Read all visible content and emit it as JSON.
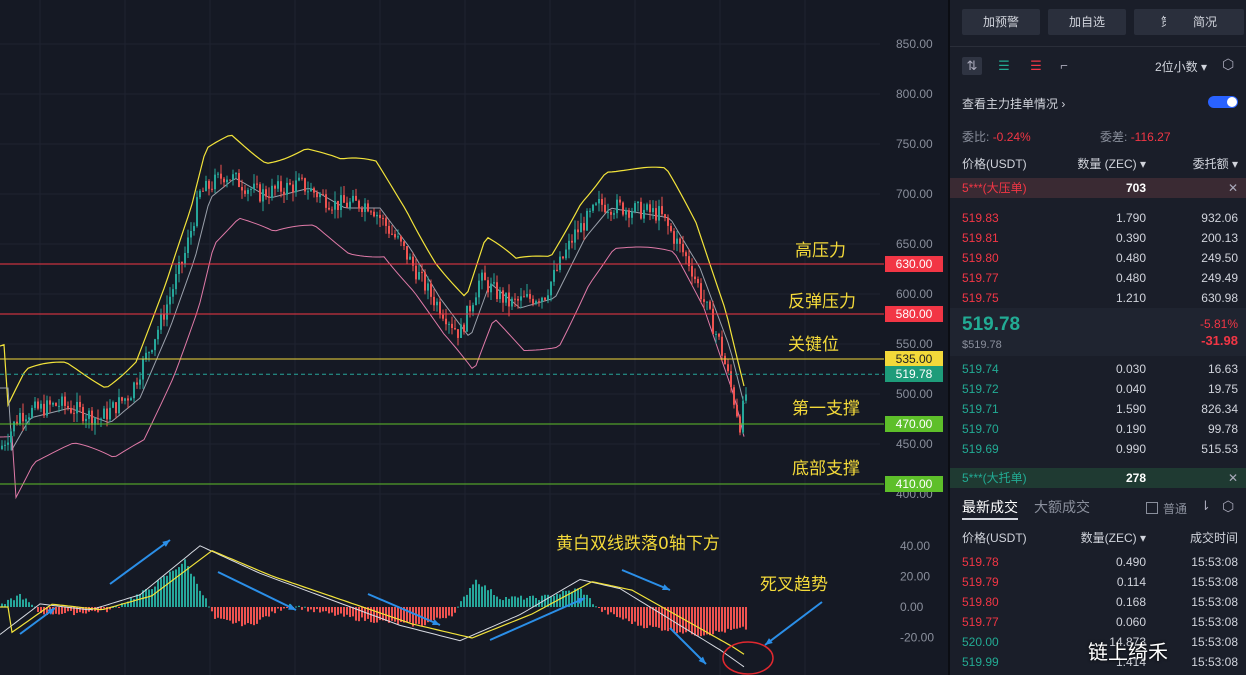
{
  "chart_data": {
    "type": "candlestick",
    "price_axis": {
      "ticks": [
        "850.00",
        "800.00",
        "750.00",
        "700.00",
        "650.00",
        "600.00",
        "550.00",
        "500.00",
        "450.00",
        "400.00"
      ],
      "range": [
        400,
        870
      ]
    },
    "macd_axis": {
      "ticks": [
        "40.00",
        "20.00",
        "0.00",
        "-20.00"
      ]
    },
    "current_price": 519.78,
    "levels": [
      {
        "price": 630.0,
        "label": "630.00",
        "color": "#f23645",
        "annotation": "高压力"
      },
      {
        "price": 580.0,
        "label": "580.00",
        "color": "#f23645",
        "annotation": "反弹压力"
      },
      {
        "price": 535.0,
        "label": "535.00",
        "color": "#f3d93a",
        "annotation": "关键位"
      },
      {
        "price": 470.0,
        "label": "470.00",
        "color": "#5ebf2a",
        "annotation": "第一支撑"
      },
      {
        "price": 410.0,
        "label": "410.00",
        "color": "#5ebf2a",
        "annotation": "底部支撑"
      }
    ],
    "current_tag": "519.78",
    "macd_annotations": [
      "黄白双线跌落0轴下方",
      "死叉趋势"
    ]
  },
  "panel": {
    "buttons": [
      "加预警",
      "加自选",
      "策略",
      "简况"
    ],
    "decimals": "2位小数",
    "depth_link": "查看主力挂单情况",
    "ratio_label": "委比:",
    "ratio_value": "-0.24%",
    "diff_label": "委差:",
    "diff_value": "-116.27",
    "headers": {
      "price": "价格(USDT)",
      "qty": "数量 (ZEC)",
      "amount": "委托额"
    },
    "big_sell": {
      "label": "5***(大压单)",
      "qty": "703"
    },
    "big_buy": {
      "label": "5***(大托单)",
      "qty": "278"
    },
    "asks": [
      {
        "price": "519.83",
        "qty": "1.790",
        "amount": "932.06"
      },
      {
        "price": "519.81",
        "qty": "0.390",
        "amount": "200.13"
      },
      {
        "price": "519.80",
        "qty": "0.480",
        "amount": "249.50"
      },
      {
        "price": "519.77",
        "qty": "0.480",
        "amount": "249.49"
      },
      {
        "price": "519.75",
        "qty": "1.210",
        "amount": "630.98"
      }
    ],
    "last_price": "519.78",
    "last_price_usd": "$519.78",
    "change_pct": "-5.81%",
    "change_abs": "-31.98",
    "bids": [
      {
        "price": "519.74",
        "qty": "0.030",
        "amount": "16.63"
      },
      {
        "price": "519.72",
        "qty": "0.040",
        "amount": "19.75"
      },
      {
        "price": "519.71",
        "qty": "1.590",
        "amount": "826.34"
      },
      {
        "price": "519.70",
        "qty": "0.190",
        "amount": "99.78"
      },
      {
        "price": "519.69",
        "qty": "0.990",
        "amount": "515.53"
      }
    ],
    "trades_tab": "最新成交",
    "big_trades_tab": "大额成交",
    "normal_label": "普通",
    "trade_headers": {
      "price": "价格(USDT)",
      "qty": "数量(ZEC)",
      "time": "成交时间"
    },
    "trades": [
      {
        "price": "519.78",
        "qty": "0.490",
        "time": "15:53:08",
        "side": "sell"
      },
      {
        "price": "519.79",
        "qty": "0.114",
        "time": "15:53:08",
        "side": "sell"
      },
      {
        "price": "519.80",
        "qty": "0.168",
        "time": "15:53:08",
        "side": "sell"
      },
      {
        "price": "519.77",
        "qty": "0.060",
        "time": "15:53:08",
        "side": "sell"
      },
      {
        "price": "520.00",
        "qty": "14.873",
        "time": "15:53:08",
        "side": "buy"
      },
      {
        "price": "519.99",
        "qty": "1.414",
        "time": "15:53:08",
        "side": "buy"
      }
    ]
  },
  "watermark": "链上绮禾"
}
